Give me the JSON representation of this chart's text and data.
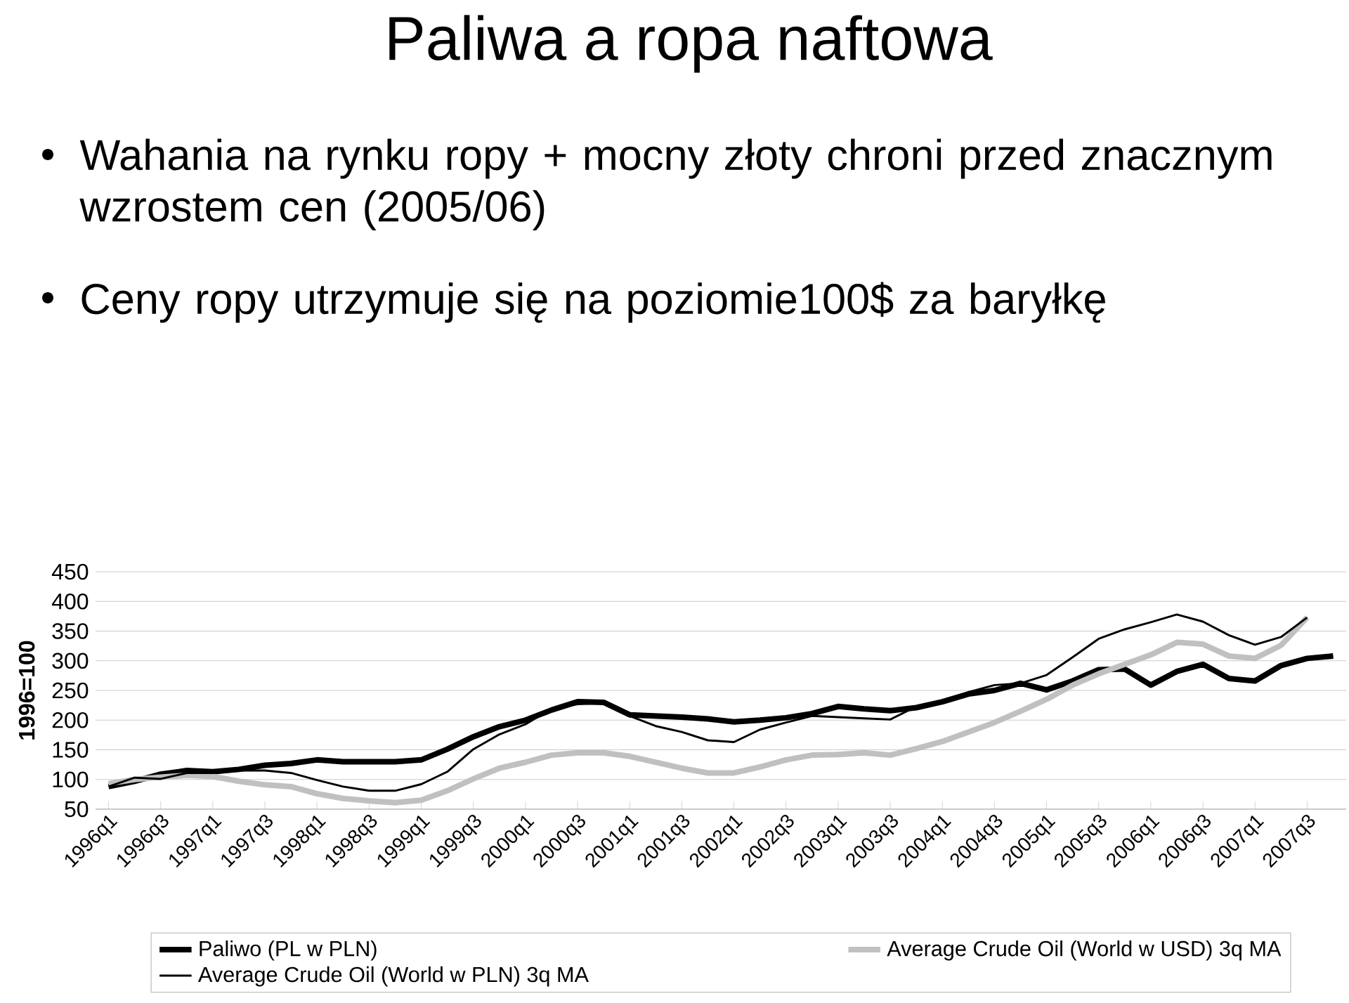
{
  "chart_data": {
    "type": "line",
    "title": "Paliwa a ropa naftowa",
    "annotations": [
      "Wahania na rynku ropy + mocny złoty chroni przed znacznym wzrostem cen (2005/06)",
      "Ceny ropy utrzymuje się na poziomie100$ za baryłkę"
    ],
    "ylabel": "1996=100",
    "categories": [
      "1996q1",
      null,
      "1996q3",
      null,
      "1997q1",
      null,
      "1997q3",
      null,
      "1998q1",
      null,
      "1998q3",
      null,
      "1999q1",
      null,
      "1999q3",
      null,
      "2000q1",
      null,
      "2000q3",
      null,
      "2001q1",
      null,
      "2001q3",
      null,
      "2002q1",
      null,
      "2002q3",
      null,
      "2003q1",
      null,
      "2003q3",
      null,
      "2004q1",
      null,
      "2004q3",
      null,
      "2005q1",
      null,
      "2005q3",
      null,
      "2006q1",
      null,
      "2006q3",
      null,
      "2007q1",
      null,
      "2007q3",
      null
    ],
    "series": [
      {
        "name": "Paliwo (PL w PLN)",
        "color": "#000000",
        "values": [
          88,
          97,
          109,
          115,
          113,
          117,
          124,
          127,
          133,
          130,
          130,
          130,
          133,
          151,
          172,
          189,
          200,
          217,
          231,
          230,
          209,
          207,
          205,
          202,
          197,
          200,
          204,
          211,
          223,
          219,
          216,
          221,
          231,
          244,
          250,
          262,
          251,
          266,
          285,
          286,
          259,
          282,
          294,
          270,
          266,
          292,
          304,
          308
        ]
      },
      {
        "name": "Average Crude Oil (World w USD) 3q MA",
        "color": "#c0c0c0",
        "values": [
          93,
          100,
          104,
          107,
          105,
          97,
          91,
          88,
          76,
          68,
          64,
          61,
          65,
          81,
          101,
          119,
          129,
          141,
          145,
          145,
          139,
          129,
          119,
          111,
          111,
          121,
          133,
          141,
          142,
          145,
          141,
          152,
          164,
          180,
          196,
          215,
          235,
          259,
          278,
          294,
          310,
          331,
          328,
          308,
          304,
          326,
          373,
          null
        ]
      },
      {
        "name": "Average Crude Oil (World w PLN) 3q MA",
        "color": "#000000",
        "values": [
          88,
          103,
          101,
          111,
          111,
          115,
          115,
          111,
          99,
          88,
          81,
          81,
          92,
          113,
          151,
          176,
          193,
          219,
          227,
          229,
          207,
          190,
          180,
          166,
          163,
          184,
          196,
          207,
          205,
          203,
          201,
          223,
          231,
          247,
          259,
          262,
          276,
          306,
          337,
          353,
          365,
          378,
          366,
          343,
          327,
          340,
          373,
          null
        ]
      }
    ],
    "ylim": [
      50,
      450
    ],
    "yticks": [
      50,
      100,
      150,
      200,
      250,
      300,
      350,
      400,
      450
    ],
    "grid": "y",
    "legend": "bottom",
    "marker": "none",
    "line_style": "solid"
  }
}
